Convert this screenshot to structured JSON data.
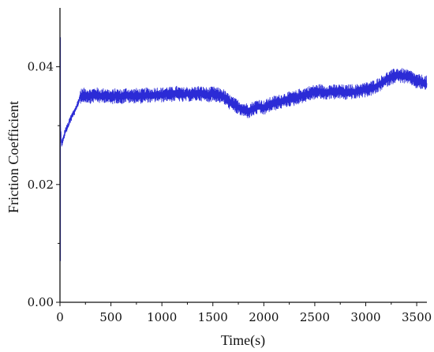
{
  "chart_data": {
    "type": "line",
    "title": "",
    "xlabel": "Time(s)",
    "ylabel": "Friction Coefficient",
    "xlim": [
      0,
      3600
    ],
    "ylim": [
      0,
      0.05
    ],
    "x_ticks": [
      0,
      500,
      1000,
      1500,
      2000,
      2500,
      3000,
      3500
    ],
    "x_tick_labels": [
      "0",
      "500",
      "1000",
      "1500",
      "2000",
      "2500",
      "3000",
      "3500"
    ],
    "y_ticks": [
      0,
      0.02,
      0.04
    ],
    "y_tick_labels": [
      "0.00",
      "0.02",
      "0.04"
    ],
    "grid": false,
    "legend": "none",
    "series": [
      {
        "color": "#2b2bd6",
        "x": [
          0,
          5,
          15,
          30,
          50,
          80,
          100,
          130,
          160,
          200,
          250,
          300,
          350,
          400,
          450,
          500,
          550,
          600,
          650,
          700,
          750,
          800,
          850,
          900,
          950,
          1000,
          1050,
          1100,
          1150,
          1200,
          1250,
          1300,
          1350,
          1400,
          1450,
          1500,
          1550,
          1600,
          1650,
          1700,
          1750,
          1800,
          1850,
          1900,
          1950,
          2000,
          2050,
          2100,
          2150,
          2200,
          2250,
          2300,
          2350,
          2400,
          2450,
          2500,
          2550,
          2600,
          2650,
          2700,
          2750,
          2800,
          2850,
          2900,
          2950,
          3000,
          3050,
          3100,
          3150,
          3200,
          3250,
          3300,
          3350,
          3400,
          3450,
          3500,
          3550,
          3600
        ],
        "y": [
          0.045,
          0.03,
          0.027,
          0.0275,
          0.029,
          0.03,
          0.031,
          0.032,
          0.033,
          0.035,
          0.0352,
          0.035,
          0.0353,
          0.035,
          0.0352,
          0.0348,
          0.0351,
          0.0349,
          0.0352,
          0.035,
          0.0351,
          0.035,
          0.0352,
          0.0351,
          0.0353,
          0.0352,
          0.0354,
          0.0353,
          0.0355,
          0.0352,
          0.0354,
          0.0353,
          0.0355,
          0.0354,
          0.0352,
          0.0354,
          0.0352,
          0.035,
          0.0342,
          0.0336,
          0.0331,
          0.0327,
          0.0325,
          0.0329,
          0.0333,
          0.033,
          0.0335,
          0.0338,
          0.034,
          0.0343,
          0.0345,
          0.0346,
          0.035,
          0.0352,
          0.0355,
          0.0357,
          0.0358,
          0.0356,
          0.0358,
          0.0357,
          0.0358,
          0.0356,
          0.0358,
          0.0357,
          0.036,
          0.0361,
          0.0363,
          0.0366,
          0.0372,
          0.0378,
          0.0382,
          0.0386,
          0.0385,
          0.0383,
          0.0381,
          0.0375,
          0.0374,
          0.0372
        ],
        "noise_amplitude": 0.0013
      }
    ]
  }
}
